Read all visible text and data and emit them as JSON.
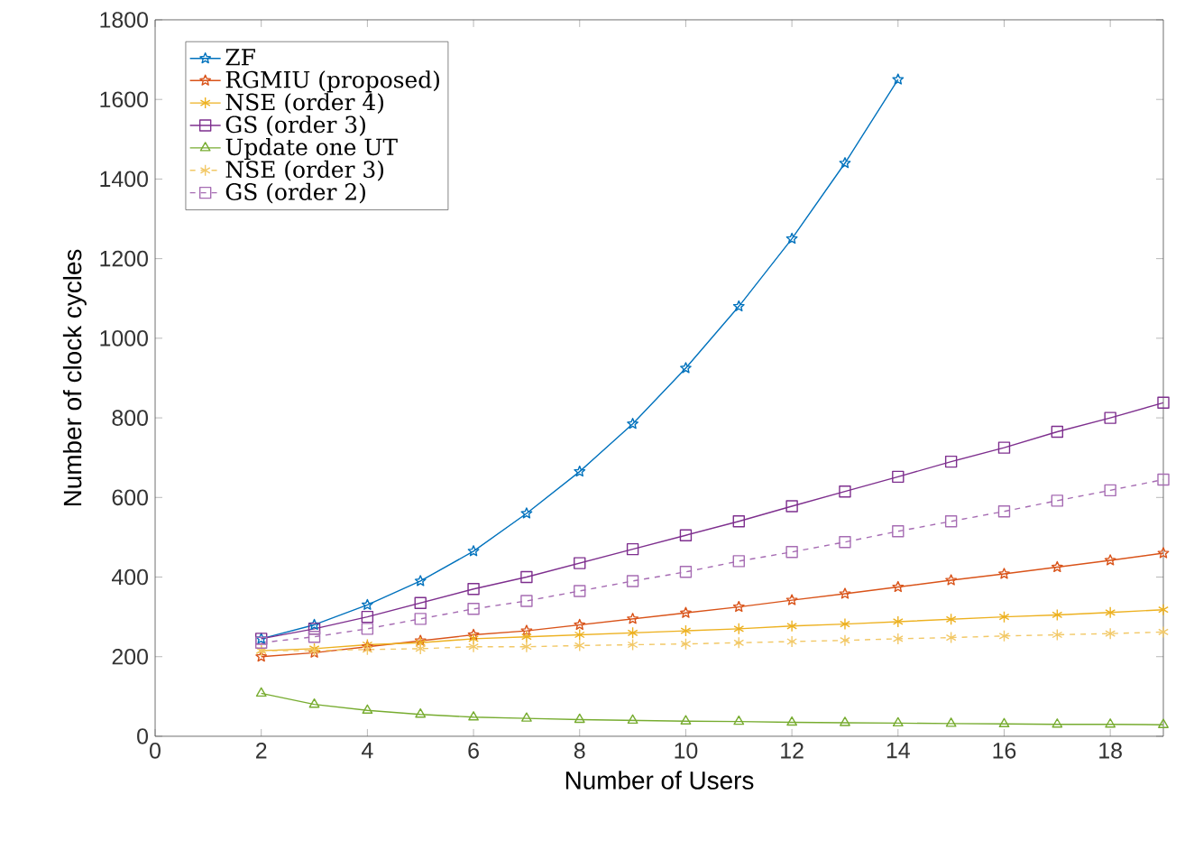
{
  "chart_data": {
    "type": "line",
    "xlabel": "Number of Users",
    "ylabel": "Number of clock cycles",
    "x": [
      2,
      3,
      4,
      5,
      6,
      7,
      8,
      9,
      10,
      11,
      12,
      13,
      14,
      15,
      16,
      17,
      18,
      19
    ],
    "xlim": [
      0,
      19
    ],
    "xticks": [
      0,
      2,
      4,
      6,
      8,
      10,
      12,
      14,
      16,
      18
    ],
    "ylim": [
      0,
      1800
    ],
    "yticks": [
      0,
      200,
      400,
      600,
      800,
      1000,
      1200,
      1400,
      1600,
      1800
    ],
    "grid": false,
    "legend": "top left",
    "series": [
      {
        "name": "ZF",
        "color": "#0072bd",
        "marker": "star",
        "line_style": "solid",
        "values": [
          245,
          280,
          330,
          390,
          465,
          560,
          665,
          785,
          925,
          1080,
          1250,
          1440,
          1650,
          null,
          null,
          null,
          null,
          null
        ]
      },
      {
        "name": "RGMIU (proposed)",
        "color": "#d95319",
        "marker": "star",
        "line_style": "solid",
        "values": [
          200,
          210,
          225,
          240,
          255,
          265,
          280,
          295,
          310,
          325,
          342,
          358,
          375,
          392,
          408,
          425,
          442,
          460
        ]
      },
      {
        "name": "NSE (order 4)",
        "color": "#edb120",
        "marker": "cross",
        "line_style": "solid",
        "values": [
          215,
          220,
          230,
          235,
          245,
          250,
          255,
          260,
          265,
          270,
          277,
          282,
          288,
          294,
          300,
          305,
          311,
          318
        ]
      },
      {
        "name": "GS (order 3)",
        "color": "#7e2f8e",
        "marker": "square",
        "line_style": "solid",
        "values": [
          245,
          270,
          300,
          335,
          370,
          400,
          435,
          470,
          505,
          540,
          578,
          615,
          652,
          690,
          725,
          765,
          800,
          838
        ]
      },
      {
        "name": "Update one UT",
        "color": "#77ac30",
        "marker": "triangle",
        "line_style": "solid",
        "values": [
          108,
          80,
          65,
          55,
          48,
          45,
          42,
          40,
          38,
          37,
          35,
          34,
          33,
          32,
          31,
          30,
          30,
          29
        ]
      },
      {
        "name": "NSE (order 3)",
        "color": "#f2c866",
        "marker": "cross",
        "line_style": "dashed",
        "values": [
          215,
          215,
          218,
          220,
          225,
          225,
          228,
          230,
          232,
          235,
          238,
          241,
          245,
          248,
          252,
          255,
          258,
          262
        ]
      },
      {
        "name": "GS (order 2)",
        "color": "#a66cb3",
        "marker": "square",
        "line_style": "dashed",
        "values": [
          235,
          250,
          270,
          295,
          320,
          340,
          365,
          390,
          413,
          440,
          463,
          488,
          515,
          540,
          565,
          592,
          618,
          645
        ]
      }
    ]
  }
}
